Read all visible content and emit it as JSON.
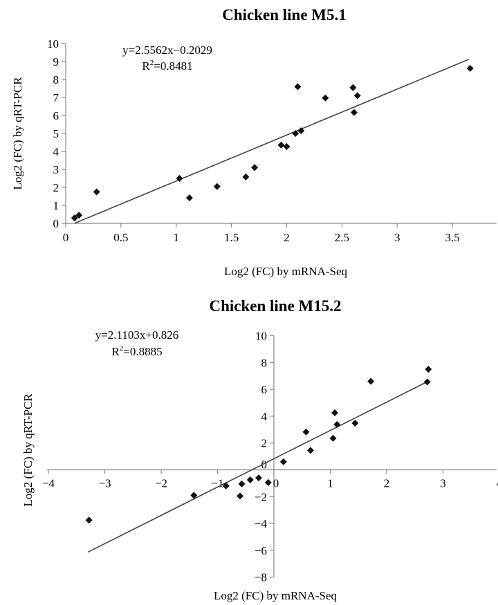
{
  "chart_data": [
    {
      "type": "scatter",
      "title": "Chicken line M5.1",
      "xlabel": "Log2 (FC) by mRNA-Seq",
      "ylabel": "Log2 (FC) by qRT-PCR",
      "xlim": [
        0,
        3.9
      ],
      "ylim": [
        0,
        10
      ],
      "xticks": [
        0,
        0.5,
        1,
        1.5,
        2,
        2.5,
        3,
        3.5
      ],
      "yticks": [
        0,
        1,
        2,
        3,
        4,
        5,
        6,
        7,
        8,
        9,
        10
      ],
      "equation": "y=2.5562x−0.2029",
      "r2_prefix": "R",
      "r2_sup": "2",
      "r2_value": "=0.8481",
      "trendline": {
        "slope": 2.5562,
        "intercept": -0.2029,
        "x_range": [
          0.08,
          3.65
        ]
      },
      "points": [
        [
          0.08,
          0.3
        ],
        [
          0.12,
          0.45
        ],
        [
          0.28,
          1.75
        ],
        [
          1.03,
          2.5
        ],
        [
          1.12,
          1.42
        ],
        [
          1.37,
          2.05
        ],
        [
          1.63,
          2.58
        ],
        [
          1.71,
          3.1
        ],
        [
          1.95,
          4.35
        ],
        [
          2.0,
          4.27
        ],
        [
          2.08,
          5.0
        ],
        [
          2.1,
          7.6
        ],
        [
          2.13,
          5.15
        ],
        [
          2.35,
          6.97
        ],
        [
          2.6,
          7.55
        ],
        [
          2.61,
          6.17
        ],
        [
          2.64,
          7.1
        ],
        [
          3.66,
          8.62
        ]
      ]
    },
    {
      "type": "scatter",
      "title": "Chicken line M15.2",
      "xlabel": "Log2 (FC) by mRNA-Seq",
      "ylabel": "Log2 (FC) by qRT-PCR",
      "xlim": [
        -4,
        4
      ],
      "ylim": [
        -8,
        10
      ],
      "xticks": [
        -4,
        -3,
        -2,
        -1,
        0,
        1,
        2,
        3,
        4
      ],
      "xtick_labels": [
        "−4",
        "−3",
        "−2",
        "−1",
        "0",
        "1",
        "2",
        "3",
        "4"
      ],
      "yticks": [
        -8,
        -6,
        -4,
        -2,
        0,
        2,
        4,
        6,
        8,
        10
      ],
      "ytick_labels": [
        "−8",
        "−6",
        "−4",
        "−2",
        "0",
        "2",
        "4",
        "6",
        "8",
        "10"
      ],
      "equation": "y=2.1103x+0.826",
      "r2_prefix": "R",
      "r2_sup": "2",
      "r2_value": "=0.8885",
      "trendline": {
        "slope": 2.1103,
        "intercept": 0.826,
        "x_range": [
          -3.3,
          2.75
        ]
      },
      "points": [
        [
          -3.28,
          -3.75
        ],
        [
          -1.42,
          -1.9
        ],
        [
          -0.85,
          -1.2
        ],
        [
          -0.6,
          -1.95
        ],
        [
          -0.57,
          -1.05
        ],
        [
          -0.42,
          -0.75
        ],
        [
          -0.27,
          -0.6
        ],
        [
          -0.1,
          -0.95
        ],
        [
          0.17,
          0.6
        ],
        [
          0.57,
          2.82
        ],
        [
          0.65,
          1.45
        ],
        [
          1.05,
          2.35
        ],
        [
          1.08,
          4.25
        ],
        [
          1.12,
          3.38
        ],
        [
          1.44,
          3.48
        ],
        [
          1.72,
          6.6
        ],
        [
          2.72,
          6.55
        ],
        [
          2.74,
          7.5
        ]
      ]
    }
  ]
}
